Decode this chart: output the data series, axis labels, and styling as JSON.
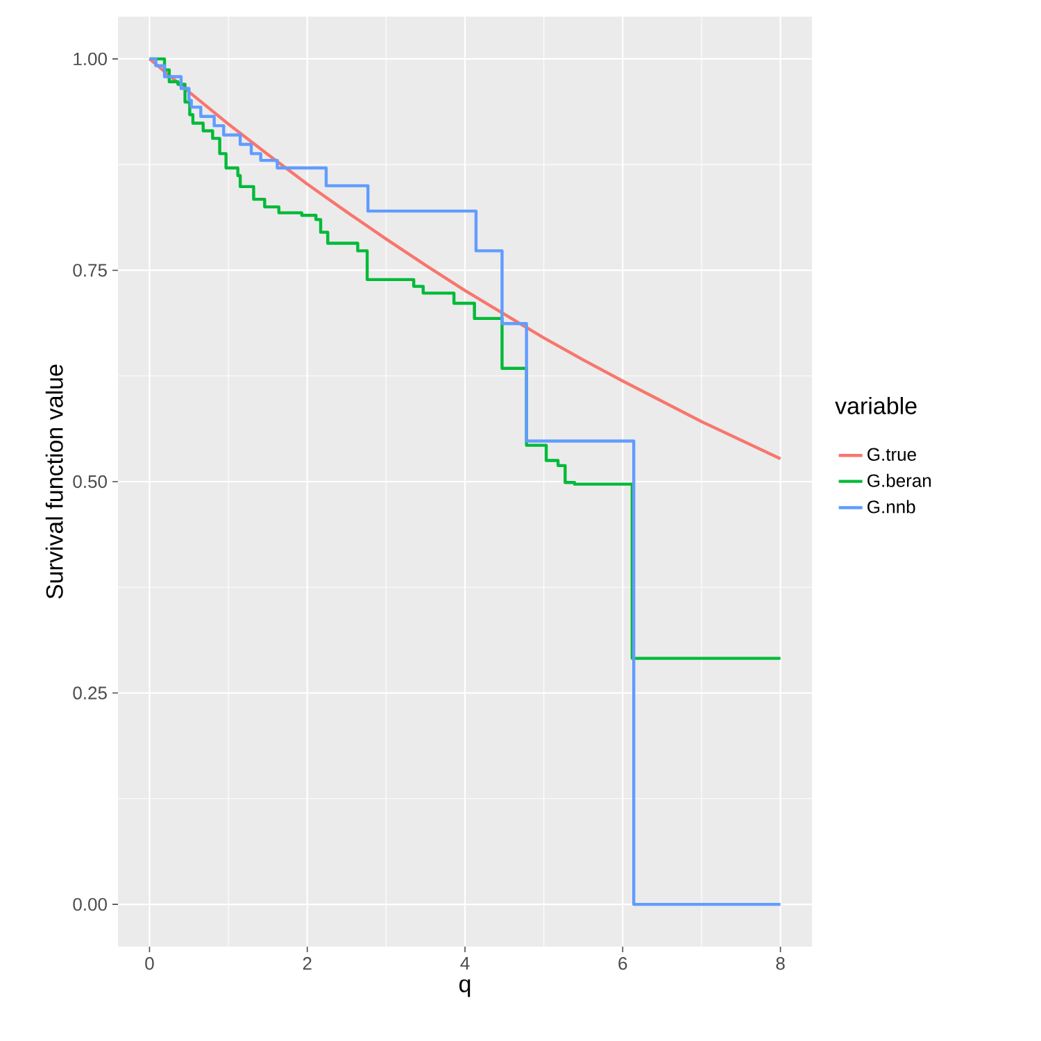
{
  "chart_data": {
    "type": "line",
    "xlabel": "q",
    "ylabel": "Survival function value",
    "legend_title": "variable",
    "legend": "right",
    "grid": true,
    "marker": "none",
    "line_style": "solid",
    "xlim": [
      -0.4,
      8.4
    ],
    "ylim": [
      -0.05,
      1.05
    ],
    "xticks": [
      0,
      2,
      4,
      6,
      8
    ],
    "yticks": [
      {
        "value": 0,
        "label": "0.00"
      },
      {
        "value": 0.25,
        "label": "0.25"
      },
      {
        "value": 0.5,
        "label": "0.50"
      },
      {
        "value": 0.75,
        "label": "0.75"
      },
      {
        "value": 1,
        "label": "1.00"
      }
    ],
    "series": [
      {
        "name": "G.true",
        "type": "line",
        "color": "#f8766d",
        "x": [
          0,
          0.5,
          1,
          1.5,
          2,
          2.5,
          3,
          3.5,
          4,
          4.5,
          5,
          5.5,
          6,
          6.5,
          7,
          7.5,
          8
        ],
        "values": [
          1,
          0.961,
          0.923,
          0.887,
          0.852,
          0.819,
          0.787,
          0.756,
          0.726,
          0.698,
          0.67,
          0.644,
          0.619,
          0.595,
          0.571,
          0.549,
          0.527
        ]
      },
      {
        "name": "G.beran",
        "type": "step",
        "color": "#00ba38",
        "x": [
          0,
          0.19,
          0.25,
          0.36,
          0.45,
          0.51,
          0.55,
          0.68,
          0.8,
          0.89,
          0.97,
          1.12,
          1.15,
          1.32,
          1.46,
          1.64,
          1.93,
          2.11,
          2.17,
          2.26,
          2.64,
          2.76,
          3.35,
          3.47,
          3.86,
          4.12,
          4.47,
          4.78,
          5.03,
          5.18,
          5.27,
          5.39,
          6.12,
          8
        ],
        "values": [
          1,
          0.987,
          0.973,
          0.97,
          0.949,
          0.934,
          0.924,
          0.915,
          0.906,
          0.888,
          0.871,
          0.862,
          0.849,
          0.834,
          0.825,
          0.818,
          0.815,
          0.81,
          0.795,
          0.782,
          0.773,
          0.739,
          0.731,
          0.723,
          0.711,
          0.693,
          0.634,
          0.543,
          0.525,
          0.519,
          0.499,
          0.497,
          0.291,
          0.291
        ]
      },
      {
        "name": "G.nnb",
        "type": "step",
        "color": "#619cff",
        "x": [
          0,
          0.08,
          0.19,
          0.4,
          0.5,
          0.53,
          0.65,
          0.82,
          0.94,
          1.15,
          1.29,
          1.41,
          1.62,
          2.24,
          2.77,
          4.14,
          4.47,
          4.78,
          6.14,
          8
        ],
        "values": [
          1,
          0.992,
          0.979,
          0.965,
          0.951,
          0.943,
          0.932,
          0.921,
          0.91,
          0.899,
          0.888,
          0.88,
          0.871,
          0.85,
          0.82,
          0.773,
          0.687,
          0.548,
          0,
          0
        ]
      }
    ]
  }
}
